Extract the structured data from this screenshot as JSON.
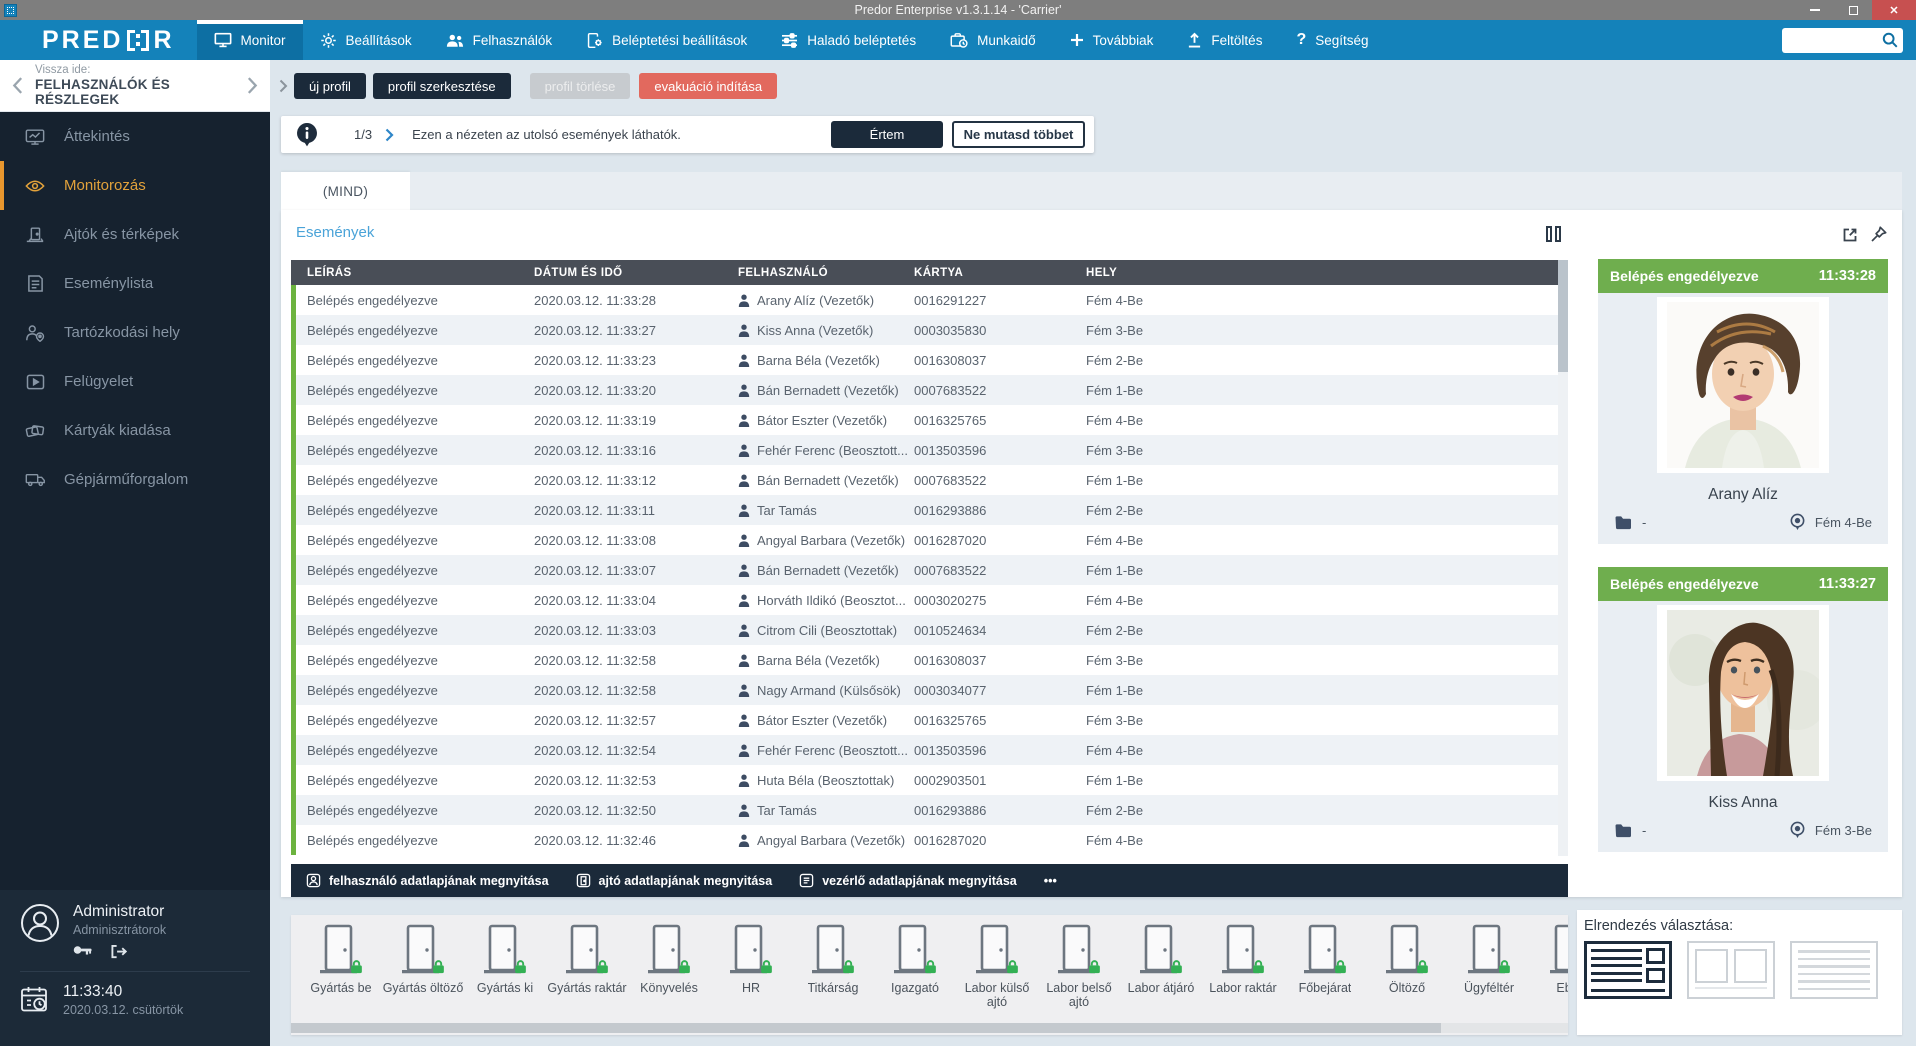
{
  "window": {
    "title": "Predor Enterprise v1.3.1.14 - 'Carrier'"
  },
  "nav": {
    "logo_prefix": "PRED",
    "logo_suffix": "R",
    "items": [
      {
        "label": "Monitor",
        "icon": "monitor-icon",
        "active": true
      },
      {
        "label": "Beállítások",
        "icon": "gear-icon"
      },
      {
        "label": "Felhasználók",
        "icon": "users-icon"
      },
      {
        "label": "Beléptetési beállítások",
        "icon": "entry-settings-icon"
      },
      {
        "label": "Haladó beléptetés",
        "icon": "sliders-icon"
      },
      {
        "label": "Munkaidő",
        "icon": "worktime-icon"
      },
      {
        "label": "Továbbiak",
        "icon": "plus-icon"
      },
      {
        "label": "Feltöltés",
        "icon": "upload-icon"
      },
      {
        "label": "Segítség",
        "icon": "help-icon"
      }
    ]
  },
  "toolbar": {
    "buttons": [
      {
        "label": "új profil",
        "style": "dark"
      },
      {
        "label": "profil szerkesztése",
        "style": "dark"
      },
      {
        "label": "profil törlése",
        "style": "disabled"
      },
      {
        "label": "evakuáció indítása",
        "style": "danger"
      }
    ]
  },
  "sidebar": {
    "back": {
      "label": "Vissza ide:",
      "target": "FELHASZNÁLÓK ÉS RÉSZLEGEK"
    },
    "items": [
      {
        "label": "Áttekintés",
        "icon": "overview-icon"
      },
      {
        "label": "Monitorozás",
        "icon": "eye-icon",
        "active": true
      },
      {
        "label": "Ajtók és térképek",
        "icon": "door-map-icon"
      },
      {
        "label": "Eseménylista",
        "icon": "event-list-icon"
      },
      {
        "label": "Tartózkodási hely",
        "icon": "person-location-icon"
      },
      {
        "label": "Felügyelet",
        "icon": "surveillance-icon"
      },
      {
        "label": "Kártyák kiadása",
        "icon": "cards-icon"
      },
      {
        "label": "Gépjárműforgalom",
        "icon": "vehicle-icon"
      }
    ],
    "user": {
      "name": "Administrator",
      "role": "Adminisztrátorok"
    },
    "clock": {
      "time": "11:33:40",
      "date": "2020.03.12. csütörtök"
    }
  },
  "info_banner": {
    "progress": "1/3",
    "message": "Ezen a nézeten az utolsó események láthatók.",
    "confirm": "Értem",
    "dismiss": "Ne mutasd többet"
  },
  "tabs": {
    "active": "(MIND)"
  },
  "events": {
    "title": "Események",
    "columns": [
      "LEÍRÁS",
      "DÁTUM ÉS IDŐ",
      "FELHASZNÁLÓ",
      "KÁRTYA",
      "HELY"
    ],
    "rows": [
      {
        "description": "Belépés engedélyezve",
        "datetime": "2020.03.12. 11:33:28",
        "user": "Arany Alíz (Vezetők)",
        "card": "0016291227",
        "place": "Fém 4-Be"
      },
      {
        "description": "Belépés engedélyezve",
        "datetime": "2020.03.12. 11:33:27",
        "user": "Kiss Anna (Vezetők)",
        "card": "0003035830",
        "place": "Fém 3-Be"
      },
      {
        "description": "Belépés engedélyezve",
        "datetime": "2020.03.12. 11:33:23",
        "user": "Barna Béla (Vezetők)",
        "card": "0016308037",
        "place": "Fém 2-Be"
      },
      {
        "description": "Belépés engedélyezve",
        "datetime": "2020.03.12. 11:33:20",
        "user": "Bán Bernadett (Vezetők)",
        "card": "0007683522",
        "place": "Fém 1-Be"
      },
      {
        "description": "Belépés engedélyezve",
        "datetime": "2020.03.12. 11:33:19",
        "user": "Bátor Eszter (Vezetők)",
        "card": "0016325765",
        "place": "Fém 4-Be"
      },
      {
        "description": "Belépés engedélyezve",
        "datetime": "2020.03.12. 11:33:16",
        "user": "Fehér Ferenc (Beosztott...",
        "card": "0013503596",
        "place": "Fém 3-Be"
      },
      {
        "description": "Belépés engedélyezve",
        "datetime": "2020.03.12. 11:33:12",
        "user": "Bán Bernadett (Vezetők)",
        "card": "0007683522",
        "place": "Fém 1-Be"
      },
      {
        "description": "Belépés engedélyezve",
        "datetime": "2020.03.12. 11:33:11",
        "user": "Tar Tamás",
        "card": "0016293886",
        "place": "Fém 2-Be"
      },
      {
        "description": "Belépés engedélyezve",
        "datetime": "2020.03.12. 11:33:08",
        "user": "Angyal Barbara (Vezetők)",
        "card": "0016287020",
        "place": "Fém 4-Be"
      },
      {
        "description": "Belépés engedélyezve",
        "datetime": "2020.03.12. 11:33:07",
        "user": "Bán Bernadett (Vezetők)",
        "card": "0007683522",
        "place": "Fém 1-Be"
      },
      {
        "description": "Belépés engedélyezve",
        "datetime": "2020.03.12. 11:33:04",
        "user": "Horváth Ildikó (Beosztot...",
        "card": "0003020275",
        "place": "Fém 4-Be"
      },
      {
        "description": "Belépés engedélyezve",
        "datetime": "2020.03.12. 11:33:03",
        "user": "Citrom Cili (Beosztottak)",
        "card": "0010524634",
        "place": "Fém 2-Be"
      },
      {
        "description": "Belépés engedélyezve",
        "datetime": "2020.03.12. 11:32:58",
        "user": "Barna Béla (Vezetők)",
        "card": "0016308037",
        "place": "Fém 3-Be"
      },
      {
        "description": "Belépés engedélyezve",
        "datetime": "2020.03.12. 11:32:58",
        "user": "Nagy Armand (Külsősök)",
        "card": "0003034077",
        "place": "Fém 1-Be"
      },
      {
        "description": "Belépés engedélyezve",
        "datetime": "2020.03.12. 11:32:57",
        "user": "Bátor Eszter (Vezetők)",
        "card": "0016325765",
        "place": "Fém 3-Be"
      },
      {
        "description": "Belépés engedélyezve",
        "datetime": "2020.03.12. 11:32:54",
        "user": "Fehér Ferenc (Beosztott...",
        "card": "0013503596",
        "place": "Fém 4-Be"
      },
      {
        "description": "Belépés engedélyezve",
        "datetime": "2020.03.12. 11:32:53",
        "user": "Huta Béla (Beosztottak)",
        "card": "0002903501",
        "place": "Fém 1-Be"
      },
      {
        "description": "Belépés engedélyezve",
        "datetime": "2020.03.12. 11:32:50",
        "user": "Tar Tamás",
        "card": "0016293886",
        "place": "Fém 2-Be"
      },
      {
        "description": "Belépés engedélyezve",
        "datetime": "2020.03.12. 11:32:46",
        "user": "Angyal Barbara (Vezetők)",
        "card": "0016287020",
        "place": "Fém 4-Be"
      }
    ],
    "actions": [
      {
        "label": "felhasználó adatlapjának megnyitása",
        "icon": "user-sheet-icon"
      },
      {
        "label": "ajtó adatlapjának megnyitása",
        "icon": "door-sheet-icon"
      },
      {
        "label": "vezérlő adatlapjának megnyitása",
        "icon": "controller-sheet-icon"
      },
      {
        "label": "•••",
        "icon": ""
      }
    ]
  },
  "event_cards": [
    {
      "status": "Belépés engedélyezve",
      "time": "11:33:28",
      "name": "Arany Alíz",
      "department": "-",
      "place": "Fém 4-Be"
    },
    {
      "status": "Belépés engedélyezve",
      "time": "11:33:27",
      "name": "Kiss Anna",
      "department": "-",
      "place": "Fém 3-Be"
    }
  ],
  "doors": {
    "items": [
      "Gyártás be",
      "Gyártás öltöző",
      "Gyártás ki",
      "Gyártás raktár",
      "Könyvelés",
      "HR",
      "Titkárság",
      "Igazgató",
      "Labor külső ajtó",
      "Labor belső ajtó",
      "Labor átjáró",
      "Labor raktár",
      "Főbejárat",
      "Öltöző",
      "Ügyféltér",
      "Ebéd"
    ]
  },
  "layout_picker": {
    "label": "Elrendezés választása:"
  },
  "colors": {
    "nav_blue": "#1482ba",
    "navy": "#1b2a3a",
    "orange": "#e2a23b",
    "green": "#6fae4e",
    "danger": "#e2695e",
    "row_green": "#6cb33f"
  }
}
